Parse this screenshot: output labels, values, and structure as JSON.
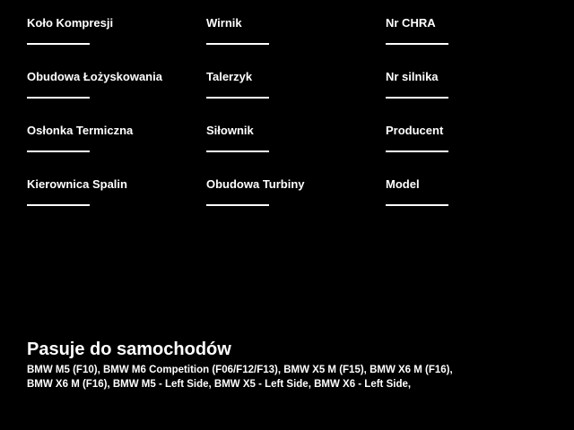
{
  "page": {
    "background_color": "#000000",
    "text_color": "#ffffff"
  },
  "form": {
    "fields": [
      {
        "label": "Koło Kompresji",
        "value": ""
      },
      {
        "label": "Wirnik",
        "value": ""
      },
      {
        "label": "Nr CHRA",
        "value": ""
      },
      {
        "label": "Obudowa Łożyskowania",
        "value": ""
      },
      {
        "label": "Talerzyk",
        "value": ""
      },
      {
        "label": "Nr silnika",
        "value": ""
      },
      {
        "label": "Osłonka Termiczna",
        "value": ""
      },
      {
        "label": "Siłownik",
        "value": ""
      },
      {
        "label": "Producent",
        "value": ""
      },
      {
        "label": "Kierownica Spalin",
        "value": ""
      },
      {
        "label": "Obudowa Turbiny",
        "value": ""
      },
      {
        "label": "Model",
        "value": ""
      }
    ]
  },
  "compatibility": {
    "heading": "Pasuje do samochodów",
    "lines": [
      "BMW M5 (F10), BMW M6 Competition (F06/F12/F13), BMW X5 M (F15), BMW X6 M (F16),",
      "BMW X6 M (F16), BMW M5 - Left Side, BMW X5 - Left Side, BMW X6 - Left Side,"
    ]
  }
}
